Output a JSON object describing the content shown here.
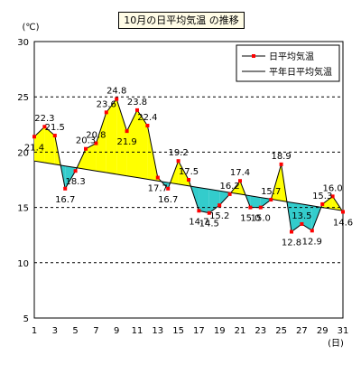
{
  "chart_data": {
    "type": "line",
    "title": "10月の日平均気温 の推移",
    "ylabel": "(℃)",
    "xlabel": "(日)",
    "ylim": [
      5,
      30
    ],
    "xlim": [
      1,
      31
    ],
    "yticks": [
      5,
      10,
      15,
      20,
      25,
      30
    ],
    "xticks": [
      1,
      3,
      5,
      7,
      9,
      11,
      13,
      15,
      17,
      19,
      21,
      23,
      25,
      27,
      29,
      31
    ],
    "grid": "horizontal dashed",
    "legend_position": "top-right",
    "colors": {
      "above_fill": "#ffff00",
      "below_fill": "#33cccc",
      "series_marker": "#ff0000",
      "normal_line": "#000000"
    },
    "x": [
      1,
      2,
      3,
      4,
      5,
      6,
      7,
      8,
      9,
      10,
      11,
      12,
      13,
      14,
      15,
      16,
      17,
      18,
      19,
      20,
      21,
      22,
      23,
      24,
      25,
      26,
      27,
      28,
      29,
      30,
      31
    ],
    "series": [
      {
        "name": "日平均気温",
        "values": [
          21.4,
          22.3,
          21.5,
          16.7,
          18.3,
          20.3,
          20.8,
          23.6,
          24.8,
          21.9,
          23.8,
          22.4,
          17.7,
          16.7,
          19.2,
          17.5,
          14.7,
          14.5,
          15.2,
          16.2,
          17.4,
          15.0,
          15.0,
          15.7,
          18.9,
          12.8,
          13.5,
          12.9,
          15.3,
          16.0,
          14.6
        ]
      },
      {
        "name": "平年日平均気温",
        "values": [
          19.2,
          19.05,
          18.9,
          18.75,
          18.6,
          18.45,
          18.3,
          18.15,
          18.0,
          17.85,
          17.7,
          17.55,
          17.4,
          17.25,
          17.1,
          16.95,
          16.8,
          16.65,
          16.5,
          16.35,
          16.2,
          16.05,
          15.9,
          15.75,
          15.6,
          15.45,
          15.3,
          15.15,
          15.0,
          14.85,
          14.7
        ]
      }
    ]
  }
}
